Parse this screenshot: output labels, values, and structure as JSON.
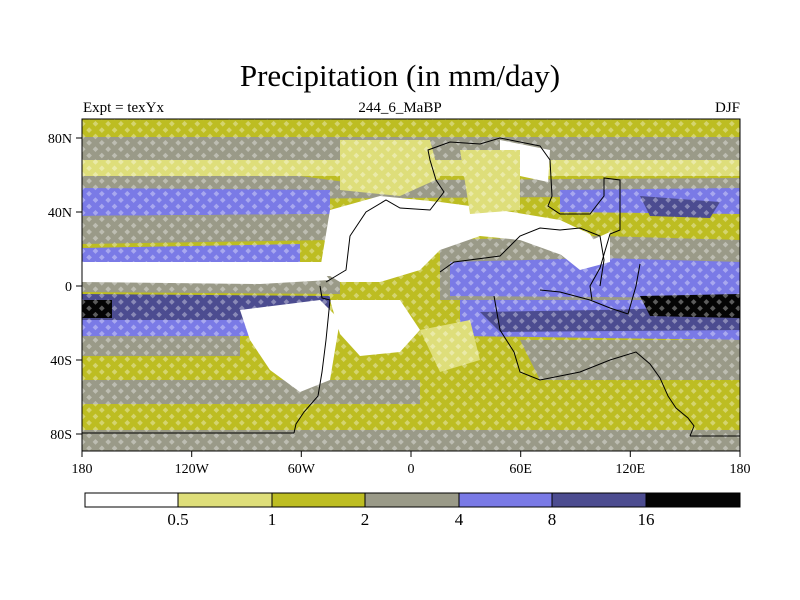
{
  "title": "Precipitation (in mm/day)",
  "subtitle_left": "Expt = texYx",
  "subtitle_center": "244_6_MaBP",
  "subtitle_right": "DJF",
  "x_ticks": [
    "180",
    "120W",
    "60W",
    "0",
    "60E",
    "120E",
    "180"
  ],
  "y_ticks": [
    "80N",
    "40N",
    "0",
    "40S",
    "80S"
  ],
  "colorbar": {
    "labels": [
      "0.5",
      "1",
      "2",
      "4",
      "8",
      "16"
    ],
    "colors": [
      "#ffffff",
      "#dede7a",
      "#bdbd22",
      "#9a9a88",
      "#7a7ae6",
      "#4c4c90",
      "#050505"
    ]
  },
  "palette": {
    "white": "#ffffff",
    "light_yellow": "#dede7a",
    "olive": "#bdbd22",
    "gray": "#9a9a88",
    "blue": "#7a7ae6",
    "dark_blue": "#4c4c90",
    "black": "#050505"
  }
}
